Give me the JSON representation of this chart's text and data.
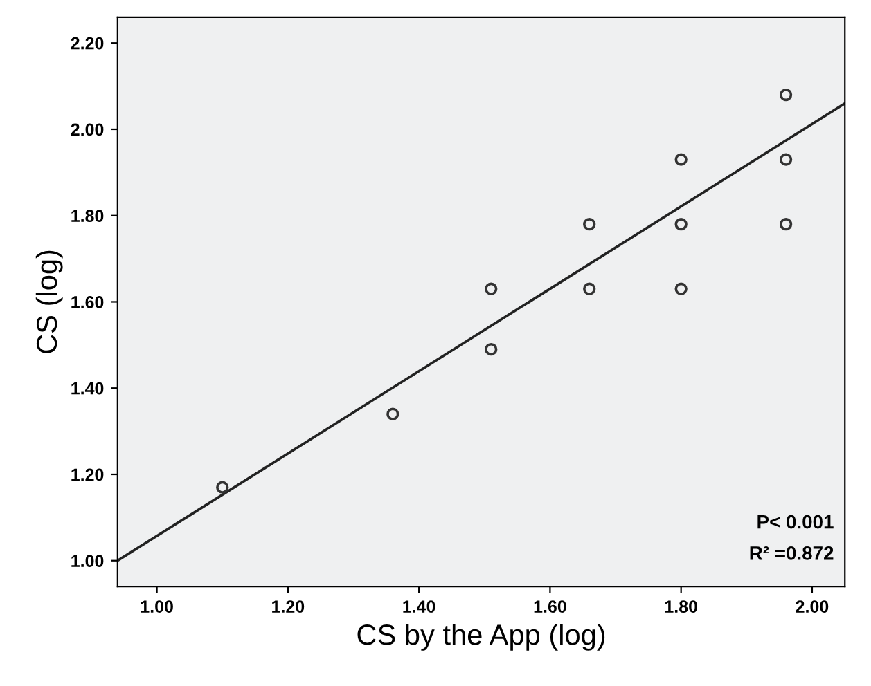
{
  "chart_data": {
    "type": "scatter",
    "xlabel": "CS by the App (log)",
    "ylabel": "CS (log)",
    "xlim": [
      0.94,
      2.05
    ],
    "ylim": [
      0.94,
      2.26
    ],
    "xticks": [
      {
        "value": 1.0,
        "label": "1.00"
      },
      {
        "value": 1.2,
        "label": "1.20"
      },
      {
        "value": 1.4,
        "label": "1.40"
      },
      {
        "value": 1.6,
        "label": "1.60"
      },
      {
        "value": 1.8,
        "label": "1.80"
      },
      {
        "value": 2.0,
        "label": "2.00"
      }
    ],
    "yticks": [
      {
        "value": 1.0,
        "label": "1.00"
      },
      {
        "value": 1.2,
        "label": "1.20"
      },
      {
        "value": 1.4,
        "label": "1.40"
      },
      {
        "value": 1.6,
        "label": "1.60"
      },
      {
        "value": 1.8,
        "label": "1.80"
      },
      {
        "value": 2.0,
        "label": "2.00"
      },
      {
        "value": 2.2,
        "label": "2.20"
      }
    ],
    "series": [
      {
        "color": "#333333",
        "marker": "circle",
        "x": [
          1.1,
          1.36,
          1.51,
          1.51,
          1.66,
          1.66,
          1.8,
          1.8,
          1.8,
          1.96,
          1.96,
          1.96
        ],
        "values": [
          1.17,
          1.34,
          1.63,
          1.49,
          1.78,
          1.63,
          1.93,
          1.78,
          1.63,
          2.08,
          1.93,
          1.78
        ]
      },
      {
        "type": "line",
        "color": "#222222",
        "marker": "none",
        "x": [
          0.94,
          2.05
        ],
        "values": [
          1.0,
          2.06
        ]
      }
    ],
    "annotations": [
      "P< 0.001",
      "R² =0.872"
    ],
    "grid": false,
    "legend": false
  }
}
